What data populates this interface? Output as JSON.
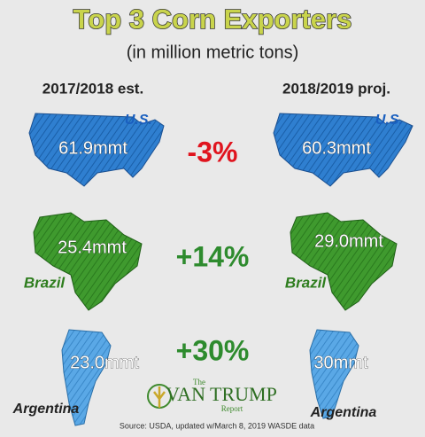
{
  "header": {
    "title": "Top 3 Corn Exporters",
    "subtitle": "(in million metric tons)"
  },
  "columns": [
    "2017/2018 est.",
    "2018/2019 proj."
  ],
  "rows": [
    {
      "country": "U.S.",
      "before": "61.9mmt",
      "change": "-3%",
      "after": "60.3mmt"
    },
    {
      "country": "Brazil",
      "before": "25.4mmt",
      "change": "+14%",
      "after": "29.0mmt"
    },
    {
      "country": "Argentina",
      "before": "23.0mmt",
      "change": "+30%",
      "after": "30mmt"
    }
  ],
  "logo": {
    "top": "The",
    "name": "VAN TRUMP",
    "bottom": "Report"
  },
  "source": "Source: USDA, updated w/March 8, 2019 WASDE data"
}
